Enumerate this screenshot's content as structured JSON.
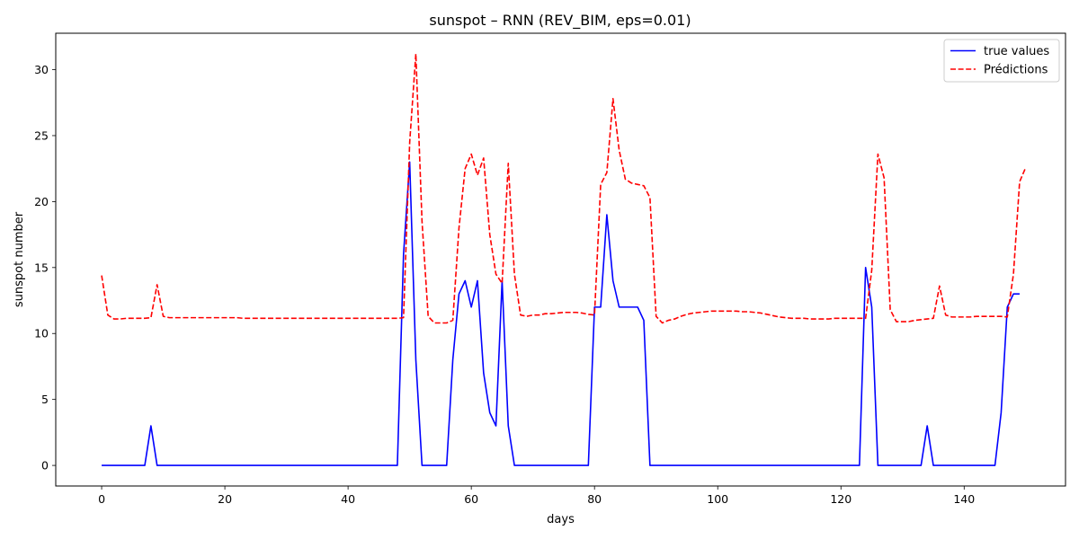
{
  "chart_data": {
    "type": "line",
    "title": "sunspot – RNN (REV_BIM, eps=0.01)",
    "xlabel": "days",
    "ylabel": "sunspot number",
    "xlim": [
      -7.45,
      156.45
    ],
    "ylim": [
      -1.56,
      32.76
    ],
    "xticks": [
      0,
      20,
      40,
      60,
      80,
      100,
      120,
      140
    ],
    "yticks": [
      0,
      5,
      10,
      15,
      20,
      25,
      30
    ],
    "grid": false,
    "legend_position": "top-right",
    "series": [
      {
        "name": "true values",
        "color": "#0000ff",
        "dash": "solid",
        "values": [
          0,
          0,
          0,
          0,
          0,
          0,
          0,
          0,
          3,
          0,
          0,
          0,
          0,
          0,
          0,
          0,
          0,
          0,
          0,
          0,
          0,
          0,
          0,
          0,
          0,
          0,
          0,
          0,
          0,
          0,
          0,
          0,
          0,
          0,
          0,
          0,
          0,
          0,
          0,
          0,
          0,
          0,
          0,
          0,
          0,
          0,
          0,
          0,
          0,
          16,
          23,
          8,
          0,
          0,
          0,
          0,
          0,
          8,
          13,
          14,
          12,
          14,
          7,
          4,
          3,
          14,
          3,
          0,
          0,
          0,
          0,
          0,
          0,
          0,
          0,
          0,
          0,
          0,
          0,
          0,
          12,
          12,
          19,
          14,
          12,
          12,
          12,
          12,
          11,
          0,
          0,
          0,
          0,
          0,
          0,
          0,
          0,
          0,
          0,
          0,
          0,
          0,
          0,
          0,
          0,
          0,
          0,
          0,
          0,
          0,
          0,
          0,
          0,
          0,
          0,
          0,
          0,
          0,
          0,
          0,
          0,
          0,
          0,
          0,
          15,
          12,
          0,
          0,
          0,
          0,
          0,
          0,
          0,
          0,
          3,
          0,
          0,
          0,
          0,
          0,
          0,
          0,
          0,
          0,
          0,
          0,
          4,
          12,
          13,
          13
        ]
      },
      {
        "name": "Prédictions",
        "color": "#ff0000",
        "dash": "dashed",
        "values": [
          14.4,
          11.4,
          11.1,
          11.1,
          11.15,
          11.15,
          11.15,
          11.15,
          11.2,
          13.7,
          11.3,
          11.2,
          11.2,
          11.2,
          11.2,
          11.2,
          11.2,
          11.2,
          11.2,
          11.2,
          11.2,
          11.2,
          11.2,
          11.15,
          11.15,
          11.15,
          11.15,
          11.15,
          11.15,
          11.15,
          11.15,
          11.15,
          11.15,
          11.15,
          11.15,
          11.15,
          11.15,
          11.15,
          11.15,
          11.15,
          11.15,
          11.15,
          11.15,
          11.15,
          11.15,
          11.15,
          11.15,
          11.15,
          11.15,
          11.2,
          24.5,
          31.2,
          18.5,
          11.3,
          10.8,
          10.8,
          10.8,
          11.0,
          18.0,
          22.5,
          23.6,
          22.0,
          23.3,
          17.5,
          14.5,
          13.8,
          22.9,
          14.5,
          11.4,
          11.3,
          11.4,
          11.4,
          11.5,
          11.5,
          11.55,
          11.6,
          11.6,
          11.6,
          11.55,
          11.45,
          11.4,
          21.3,
          22.2,
          27.8,
          23.9,
          21.7,
          21.4,
          21.3,
          21.2,
          20.3,
          11.3,
          10.8,
          11.0,
          11.1,
          11.3,
          11.45,
          11.55,
          11.6,
          11.65,
          11.7,
          11.7,
          11.7,
          11.7,
          11.7,
          11.65,
          11.65,
          11.6,
          11.55,
          11.45,
          11.35,
          11.25,
          11.2,
          11.15,
          11.15,
          11.15,
          11.1,
          11.1,
          11.1,
          11.1,
          11.15,
          11.15,
          11.15,
          11.15,
          11.15,
          11.15,
          14.8,
          23.6,
          21.8,
          11.8,
          10.9,
          10.9,
          10.9,
          11.0,
          11.05,
          11.1,
          11.15,
          13.6,
          11.4,
          11.25,
          11.25,
          11.25,
          11.25,
          11.3,
          11.3,
          11.3,
          11.3,
          11.3,
          11.25,
          14.5,
          21.5,
          22.6
        ]
      }
    ]
  }
}
